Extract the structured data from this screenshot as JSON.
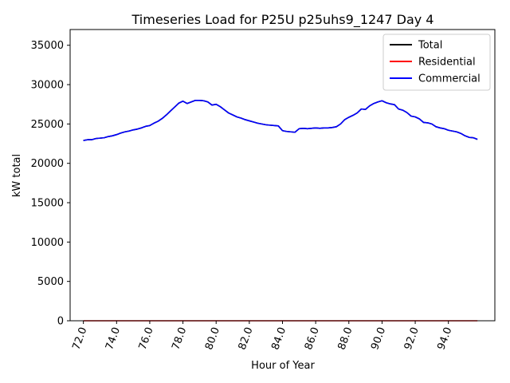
{
  "chart_data": {
    "type": "line",
    "title": "Timeseries Load for P25U p25uhs9_1247  Day 4",
    "xlabel": "Hour of Year",
    "ylabel": "kW total",
    "xlim": [
      71.2,
      96.8
    ],
    "ylim": [
      0,
      37000
    ],
    "xticks": [
      72,
      74,
      76,
      78,
      80,
      82,
      84,
      86,
      88,
      90,
      92,
      94
    ],
    "xtick_labels": [
      "72.0",
      "74.0",
      "76.0",
      "78.0",
      "80.0",
      "82.0",
      "84.0",
      "86.0",
      "88.0",
      "90.0",
      "92.0",
      "94.0"
    ],
    "yticks": [
      0,
      5000,
      10000,
      15000,
      20000,
      25000,
      30000,
      35000
    ],
    "ytick_labels": [
      "0",
      "5000",
      "10000",
      "15000",
      "20000",
      "25000",
      "30000",
      "35000"
    ],
    "legend_position": "top-right",
    "series": [
      {
        "name": "Total",
        "color": "#000000",
        "x": [
          72.0,
          72.25,
          72.5,
          72.75,
          73.0,
          73.25,
          73.5,
          73.75,
          74.0,
          74.25,
          74.5,
          74.75,
          75.0,
          75.25,
          75.5,
          75.75,
          76.0,
          76.25,
          76.5,
          76.75,
          77.0,
          77.25,
          77.5,
          77.75,
          78.0,
          78.25,
          78.5,
          78.75,
          79.0,
          79.25,
          79.5,
          79.75,
          80.0,
          80.25,
          80.5,
          80.75,
          81.0,
          81.25,
          81.5,
          81.75,
          82.0,
          82.25,
          82.5,
          82.75,
          83.0,
          83.25,
          83.5,
          83.75,
          84.0,
          84.25,
          84.5,
          84.75,
          85.0,
          85.25,
          85.5,
          85.75,
          86.0,
          86.25,
          86.5,
          86.75,
          87.0,
          87.25,
          87.5,
          87.75,
          88.0,
          88.25,
          88.5,
          88.75,
          89.0,
          89.25,
          89.5,
          89.75,
          90.0,
          90.25,
          90.5,
          90.75,
          91.0,
          91.25,
          91.5,
          91.75,
          92.0,
          92.25,
          92.5,
          92.75,
          93.0,
          93.25,
          93.5,
          93.75,
          94.0,
          94.25,
          94.5,
          94.75,
          95.0,
          95.25,
          95.5,
          95.75
        ],
        "y": [
          22900,
          23000,
          23000,
          23150,
          23200,
          23250,
          23400,
          23500,
          23650,
          23850,
          24000,
          24100,
          24250,
          24350,
          24500,
          24700,
          24800,
          25100,
          25350,
          25700,
          26150,
          26650,
          27150,
          27650,
          27900,
          27600,
          27800,
          28000,
          28000,
          27950,
          27800,
          27400,
          27500,
          27200,
          26800,
          26400,
          26150,
          25900,
          25750,
          25550,
          25400,
          25250,
          25100,
          25000,
          24900,
          24850,
          24800,
          24750,
          24150,
          24050,
          24000,
          23950,
          24400,
          24450,
          24400,
          24450,
          24500,
          24450,
          24500,
          24500,
          24550,
          24650,
          25000,
          25550,
          25850,
          26100,
          26400,
          26900,
          26850,
          27300,
          27600,
          27800,
          27950,
          27700,
          27550,
          27450,
          26900,
          26750,
          26450,
          26000,
          25900,
          25650,
          25200,
          25150,
          25000,
          24650,
          24500,
          24400,
          24200,
          24100,
          24000,
          23800,
          23500,
          23300,
          23250,
          23050
        ]
      },
      {
        "name": "Residential",
        "color": "#ff0000",
        "x": [
          72.0,
          95.75
        ],
        "y": [
          0,
          0
        ]
      },
      {
        "name": "Commercial",
        "color": "#0000ff",
        "x": [
          72.0,
          72.25,
          72.5,
          72.75,
          73.0,
          73.25,
          73.5,
          73.75,
          74.0,
          74.25,
          74.5,
          74.75,
          75.0,
          75.25,
          75.5,
          75.75,
          76.0,
          76.25,
          76.5,
          76.75,
          77.0,
          77.25,
          77.5,
          77.75,
          78.0,
          78.25,
          78.5,
          78.75,
          79.0,
          79.25,
          79.5,
          79.75,
          80.0,
          80.25,
          80.5,
          80.75,
          81.0,
          81.25,
          81.5,
          81.75,
          82.0,
          82.25,
          82.5,
          82.75,
          83.0,
          83.25,
          83.5,
          83.75,
          84.0,
          84.25,
          84.5,
          84.75,
          85.0,
          85.25,
          85.5,
          85.75,
          86.0,
          86.25,
          86.5,
          86.75,
          87.0,
          87.25,
          87.5,
          87.75,
          88.0,
          88.25,
          88.5,
          88.75,
          89.0,
          89.25,
          89.5,
          89.75,
          90.0,
          90.25,
          90.5,
          90.75,
          91.0,
          91.25,
          91.5,
          91.75,
          92.0,
          92.25,
          92.5,
          92.75,
          93.0,
          93.25,
          93.5,
          93.75,
          94.0,
          94.25,
          94.5,
          94.75,
          95.0,
          95.25,
          95.5,
          95.75
        ],
        "y": [
          22900,
          23000,
          23000,
          23150,
          23200,
          23250,
          23400,
          23500,
          23650,
          23850,
          24000,
          24100,
          24250,
          24350,
          24500,
          24700,
          24800,
          25100,
          25350,
          25700,
          26150,
          26650,
          27150,
          27650,
          27900,
          27600,
          27800,
          28000,
          28000,
          27950,
          27800,
          27400,
          27500,
          27200,
          26800,
          26400,
          26150,
          25900,
          25750,
          25550,
          25400,
          25250,
          25100,
          25000,
          24900,
          24850,
          24800,
          24750,
          24150,
          24050,
          24000,
          23950,
          24400,
          24450,
          24400,
          24450,
          24500,
          24450,
          24500,
          24500,
          24550,
          24650,
          25000,
          25550,
          25850,
          26100,
          26400,
          26900,
          26850,
          27300,
          27600,
          27800,
          27950,
          27700,
          27550,
          27450,
          26900,
          26750,
          26450,
          26000,
          25900,
          25650,
          25200,
          25150,
          25000,
          24650,
          24500,
          24400,
          24200,
          24100,
          24000,
          23800,
          23500,
          23300,
          23250,
          23050
        ]
      }
    ]
  }
}
